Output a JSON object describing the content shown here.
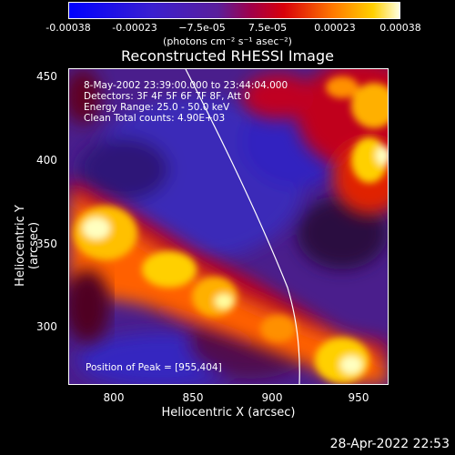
{
  "colorbar": {
    "ticks": [
      "-0.00038",
      "-0.00023",
      "−7.5e-05",
      "7.5e-05",
      "0.00023",
      "0.00038"
    ],
    "units": "(photons cm⁻² s⁻¹ asec⁻²)"
  },
  "title": "Reconstructed RHESSI Image",
  "annotations": {
    "time": "8-May-2002 23:39:00.000 to 23:44:04.000",
    "detectors": "Detectors: 3F 4F 5F 6F 7F 8F, Att 0",
    "energy": "Energy Range: 25.0 - 50.0 keV",
    "clean": "Clean     Total counts: 4.90E+03",
    "peak": "Position of Peak = [955,404]"
  },
  "x_axis": {
    "label": "Heliocentric X (arcsec)",
    "ticks": [
      "800",
      "850",
      "900",
      "950"
    ]
  },
  "y_axis": {
    "label": "Heliocentric Y (arcsec)",
    "ticks": [
      "450",
      "400",
      "350",
      "300"
    ]
  },
  "timestamp": "28-Apr-2022 22:53",
  "colors": {
    "background": "#000000",
    "text": "#ffffff",
    "cmap_low": "#0000ff",
    "cmap_mid_low": "#5a1f9b",
    "cmap_mid": "#c0001c",
    "cmap_high": "#ffcc00",
    "cmap_top": "#ffffff"
  }
}
